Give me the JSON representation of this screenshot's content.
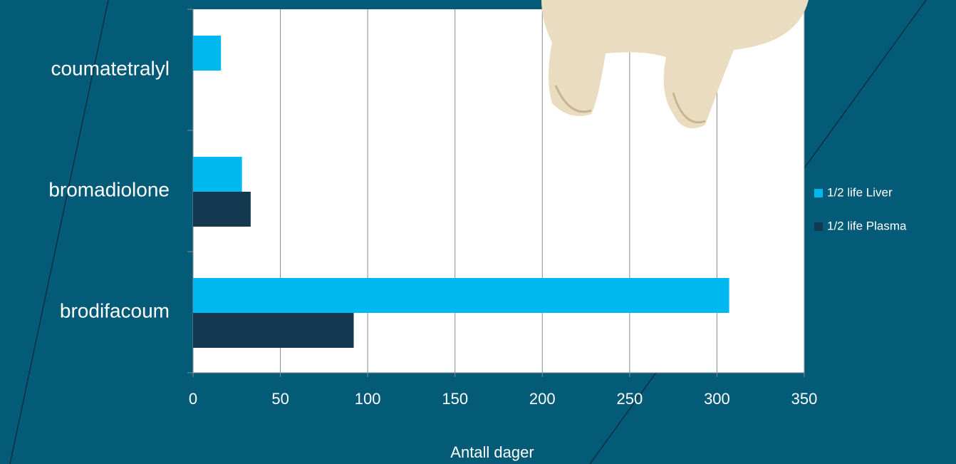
{
  "chart_data": {
    "type": "hbar",
    "x_label": "Antall dager",
    "categories": [
      "coumatetralyl",
      "bromadiolone",
      "brodifacoum"
    ],
    "series": [
      {
        "name": "1/2 life Liver",
        "color": "#00b8f0",
        "values": [
          16,
          28,
          307
        ]
      },
      {
        "name": "1/2 life Plasma",
        "color": "#14384f",
        "values": [
          null,
          33,
          92
        ]
      }
    ],
    "xlim": [
      0,
      350
    ],
    "xticks": [
      0,
      50,
      100,
      150,
      200,
      250,
      300,
      350
    ],
    "grid": true,
    "legend": "right"
  }
}
